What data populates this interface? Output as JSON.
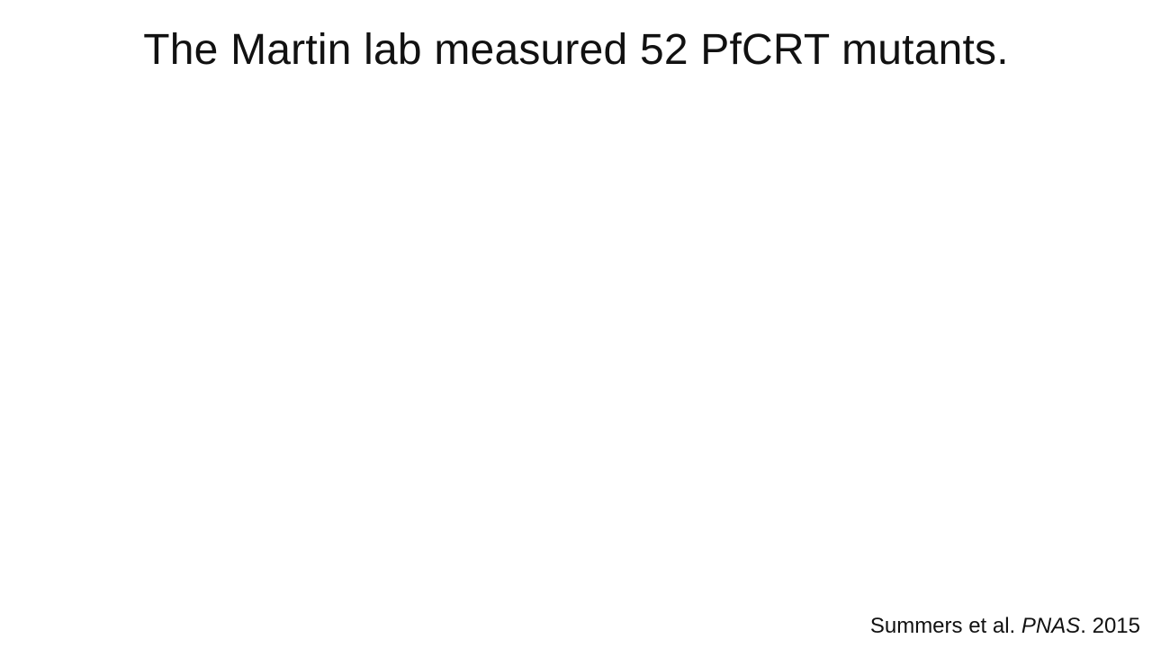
{
  "slide": {
    "title": "The Martin lab measured 52 PfCRT mutants.",
    "citation": {
      "authors": "Summers et al.",
      "journal": "PNAS",
      "year_suffix": ". 2015"
    }
  }
}
